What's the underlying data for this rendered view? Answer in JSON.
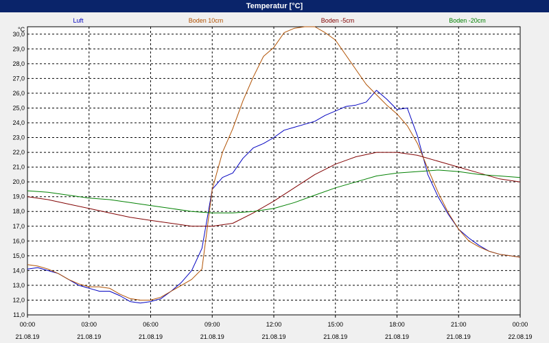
{
  "window": {
    "title": "Temperatur [°C]"
  },
  "colors": {
    "title_bar": "#0a246a",
    "background": "#f0f0f0",
    "plot_background": "#ffffff",
    "grid": "#000000"
  },
  "chart_data": {
    "type": "line",
    "unit_label": "°C",
    "ylim": [
      11.0,
      30.5
    ],
    "xlim": [
      0,
      24
    ],
    "y_ticks": [
      "11,0",
      "12,0",
      "13,0",
      "14,0",
      "15,0",
      "16,0",
      "17,0",
      "18,0",
      "19,0",
      "20,0",
      "21,0",
      "22,0",
      "23,0",
      "24,0",
      "25,0",
      "26,0",
      "27,0",
      "28,0",
      "29,0",
      "30,0"
    ],
    "x_ticks": [
      {
        "time": "00:00",
        "date": "21.08.19"
      },
      {
        "time": "03:00",
        "date": "21.08.19"
      },
      {
        "time": "06:00",
        "date": "21.08.19"
      },
      {
        "time": "09:00",
        "date": "21.08.19"
      },
      {
        "time": "12:00",
        "date": "21.08.19"
      },
      {
        "time": "15:00",
        "date": "21.08.19"
      },
      {
        "time": "18:00",
        "date": "21.08.19"
      },
      {
        "time": "21:00",
        "date": "21.08.19"
      },
      {
        "time": "00:00",
        "date": "22.08.19"
      }
    ],
    "grid": true,
    "legend_position": "top",
    "series": [
      {
        "name": "Luft",
        "color": "#0000c0",
        "x": [
          0,
          0.5,
          1,
          1.5,
          2,
          2.5,
          3,
          3.5,
          4,
          4.5,
          5,
          5.5,
          6,
          6.5,
          7,
          7.5,
          8,
          8.5,
          9,
          9.5,
          10,
          10.5,
          11,
          11.5,
          12,
          12.5,
          13,
          13.5,
          14,
          14.5,
          15,
          15.5,
          16,
          16.5,
          17,
          17.5,
          18,
          18.5,
          19,
          19.5,
          20,
          20.5,
          21,
          21.5,
          22,
          22.5,
          23,
          23.5,
          24
        ],
        "values": [
          14.1,
          14.2,
          14.0,
          13.8,
          13.4,
          13.0,
          12.8,
          12.6,
          12.6,
          12.3,
          11.9,
          11.8,
          11.9,
          12.1,
          12.6,
          13.2,
          14.0,
          15.5,
          19.5,
          20.3,
          20.6,
          21.6,
          22.3,
          22.6,
          23.0,
          23.5,
          23.7,
          23.9,
          24.1,
          24.5,
          24.8,
          25.1,
          25.2,
          25.4,
          26.2,
          25.6,
          24.9,
          25.0,
          23.1,
          20.5,
          19.0,
          17.8,
          16.8,
          16.2,
          15.7,
          15.3,
          15.1,
          15.0,
          14.9
        ]
      },
      {
        "name": "Boden 10cm",
        "color": "#b05000",
        "x": [
          0,
          0.5,
          1,
          1.5,
          2,
          2.5,
          3,
          3.5,
          4,
          4.5,
          5,
          5.5,
          6,
          6.5,
          7,
          7.5,
          8,
          8.5,
          9,
          9.5,
          10,
          10.5,
          11,
          11.5,
          12,
          12.5,
          13,
          13.5,
          14,
          14.5,
          15,
          15.5,
          16,
          16.5,
          17,
          17.5,
          18,
          18.5,
          19,
          19.5,
          20,
          20.5,
          21,
          21.5,
          22,
          22.5,
          23,
          23.5,
          24
        ],
        "values": [
          14.4,
          14.3,
          14.1,
          13.8,
          13.4,
          13.1,
          12.9,
          12.9,
          12.8,
          12.4,
          12.1,
          12.0,
          12.0,
          12.2,
          12.6,
          13.0,
          13.4,
          14.1,
          19.5,
          22.0,
          23.6,
          25.5,
          27.1,
          28.5,
          29.1,
          30.1,
          30.4,
          30.5,
          30.5,
          30.1,
          29.6,
          28.6,
          27.6,
          26.6,
          25.9,
          25.2,
          24.6,
          23.8,
          22.6,
          20.9,
          19.3,
          17.9,
          16.8,
          16.0,
          15.6,
          15.3,
          15.1,
          15.0,
          14.9
        ]
      },
      {
        "name": "Boden -5cm",
        "color": "#800000",
        "x": [
          0,
          1,
          2,
          3,
          4,
          5,
          6,
          7,
          8,
          9,
          10,
          11,
          12,
          13,
          14,
          15,
          16,
          17,
          18,
          19,
          20,
          21,
          22,
          23,
          24
        ],
        "values": [
          19.0,
          18.8,
          18.5,
          18.2,
          17.9,
          17.6,
          17.4,
          17.2,
          17.0,
          17.0,
          17.2,
          17.9,
          18.7,
          19.6,
          20.5,
          21.2,
          21.7,
          22.0,
          22.0,
          21.8,
          21.4,
          21.0,
          20.6,
          20.2,
          20.0
        ]
      },
      {
        "name": "Boden -20cm",
        "color": "#008000",
        "x": [
          0,
          1,
          2,
          3,
          4,
          5,
          6,
          7,
          8,
          9,
          10,
          11,
          12,
          13,
          14,
          15,
          16,
          17,
          18,
          19,
          20,
          21,
          22,
          23,
          24
        ],
        "values": [
          19.4,
          19.3,
          19.1,
          18.9,
          18.8,
          18.6,
          18.4,
          18.2,
          18.0,
          17.9,
          17.9,
          18.0,
          18.2,
          18.6,
          19.1,
          19.6,
          20.0,
          20.4,
          20.6,
          20.7,
          20.8,
          20.7,
          20.5,
          20.4,
          20.3
        ]
      }
    ]
  }
}
